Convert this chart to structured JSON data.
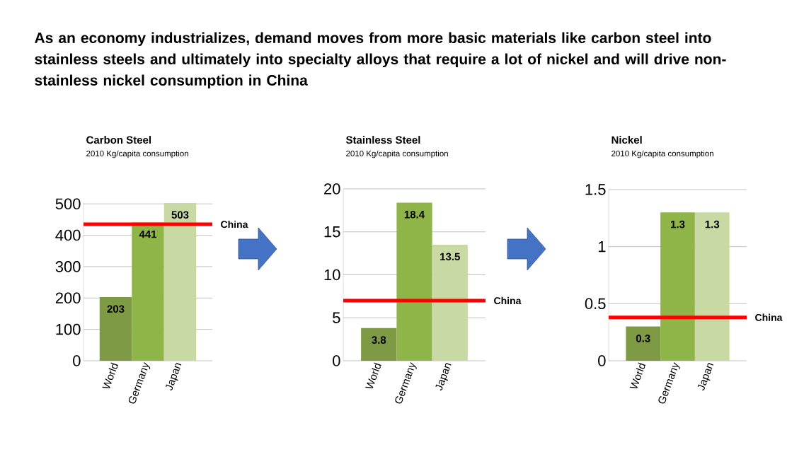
{
  "chart_data": [
    {
      "type": "other",
      "title": "As an economy industrializes, demand moves from more basic materials like carbon steel into stainless steels and ultimately into specialty alloys that require a lot of nickel and will drive non-stainless nickel consumption in China"
    },
    {
      "type": "bar",
      "title": "Carbon Steel",
      "subtitle": "2010 Kg/capita consumption",
      "categories": [
        "World",
        "Germany",
        "Japan"
      ],
      "values": [
        203,
        441,
        503
      ],
      "colors": [
        "#7f9a45",
        "#8fb548",
        "#c9d9a3"
      ],
      "ylim": [
        0,
        505
      ],
      "yticks": [
        0,
        100,
        200,
        300,
        400,
        500
      ],
      "grid": "y",
      "data_labels": true,
      "ref_lines": [
        {
          "axis": "y",
          "value": 435,
          "label": "China",
          "color": "#ff0000"
        }
      ]
    },
    {
      "type": "bar",
      "title": "Stainless Steel",
      "subtitle": "2010 Kg/capita consumption",
      "categories": [
        "World",
        "Germany",
        "Japan"
      ],
      "values": [
        3.8,
        18.4,
        13.5
      ],
      "colors": [
        "#7f9a45",
        "#8fb548",
        "#c9d9a3"
      ],
      "ylim": [
        0,
        20
      ],
      "yticks": [
        0,
        5,
        10,
        15,
        20
      ],
      "grid": "y",
      "data_labels": true,
      "ref_lines": [
        {
          "axis": "y",
          "value": 7,
          "label": "China",
          "color": "#ff0000"
        }
      ]
    },
    {
      "type": "bar",
      "title": "Nickel",
      "subtitle": "2010 Kg/capita consumption",
      "categories": [
        "World",
        "Germany",
        "Japan"
      ],
      "values": [
        0.3,
        1.3,
        1.3
      ],
      "colors": [
        "#7f9a45",
        "#8fb548",
        "#c9d9a3"
      ],
      "ylim": [
        0,
        1.5
      ],
      "yticks": [
        0,
        0.5,
        1,
        1.5
      ],
      "grid": "y",
      "data_labels": true,
      "ref_lines": [
        {
          "axis": "y",
          "value": 0.38,
          "label": "China",
          "color": "#ff0000"
        }
      ]
    }
  ]
}
